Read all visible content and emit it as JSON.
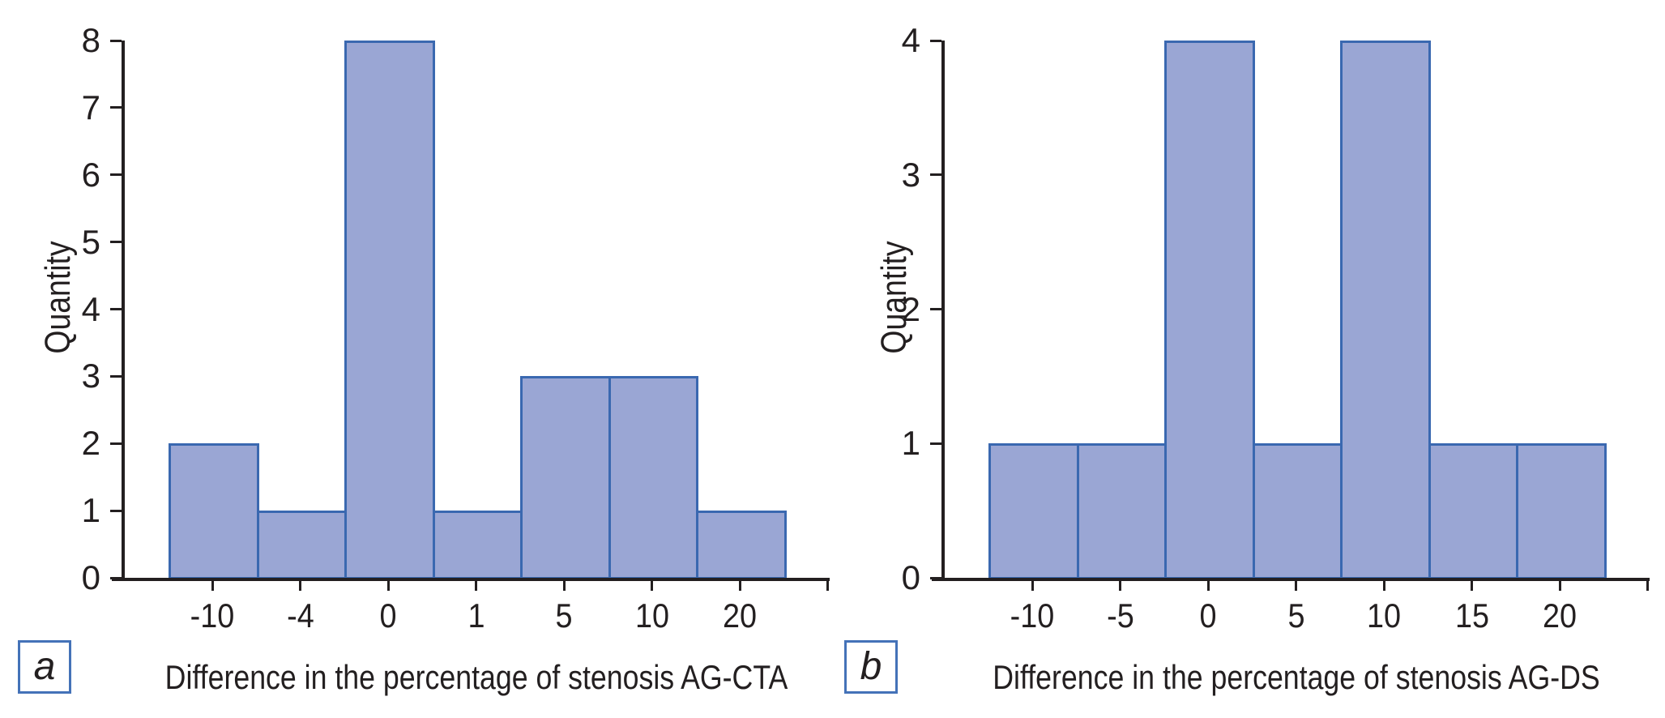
{
  "figure": {
    "background": "#ffffff",
    "bar_fill": "#9AA6D4",
    "bar_border": "#3A68B0",
    "axis_color": "#231F20",
    "text_color": "#231F20",
    "caption_border": "#4472B8"
  },
  "chart_data": [
    {
      "type": "bar",
      "panel_label": "a",
      "xlabel": "Difference in the percentage of stenosis AG-CTA",
      "ylabel": "Quantity",
      "categories": [
        "-10",
        "-4",
        "0",
        "1",
        "5",
        "10",
        "20"
      ],
      "values": [
        2,
        1,
        8,
        1,
        3,
        3,
        1
      ],
      "ylim": [
        0,
        8
      ],
      "ytick_step": 1,
      "yticks": [
        "0",
        "1",
        "2",
        "3",
        "4",
        "5",
        "6",
        "7",
        "8"
      ],
      "grid": false,
      "legend": false,
      "bars_contiguous": true,
      "extra_unlabeled_end_tick": true
    },
    {
      "type": "bar",
      "panel_label": "b",
      "xlabel": "Difference in the percentage of stenosis AG-DS",
      "ylabel": "Quantity",
      "categories": [
        "-10",
        "-5",
        "0",
        "5",
        "10",
        "15",
        "20"
      ],
      "values": [
        1,
        1,
        4,
        1,
        4,
        1,
        1
      ],
      "ylim": [
        0,
        4
      ],
      "ytick_step": 1,
      "yticks": [
        "0",
        "1",
        "2",
        "3",
        "4"
      ],
      "grid": false,
      "legend": false,
      "bars_contiguous": true,
      "extra_unlabeled_end_tick": true
    }
  ]
}
